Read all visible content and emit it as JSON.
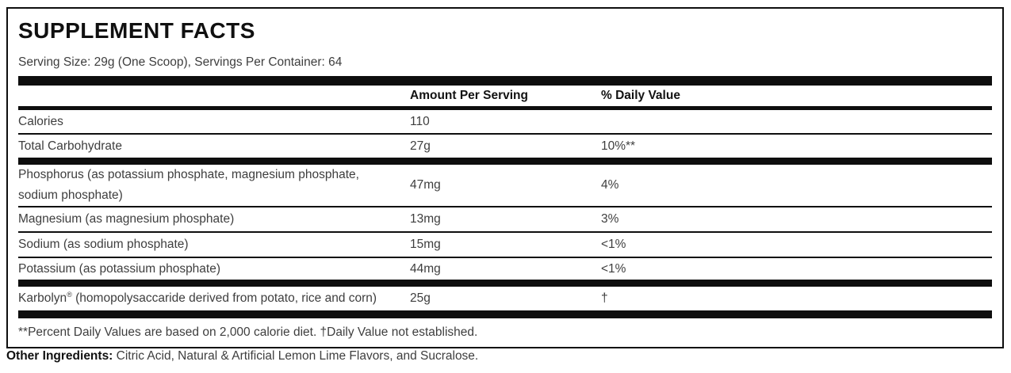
{
  "label": {
    "title": "SUPPLEMENT FACTS",
    "serving_info": "Serving Size: 29g (One Scoop), Servings Per Container: 64",
    "columns": {
      "amount": "Amount Per Serving",
      "daily_value": "% Daily Value"
    },
    "rows": [
      {
        "name": "Calories",
        "amount": "110",
        "dv": ""
      },
      {
        "name": "Total Carbohydrate",
        "amount": "27g",
        "dv": "10%**"
      },
      {
        "name": "Phosphorus (as potassium phosphate, magnesium phosphate, sodium phosphate)",
        "amount": "47mg",
        "dv": "4%"
      },
      {
        "name": "Magnesium (as magnesium phosphate)",
        "amount": "13mg",
        "dv": "3%"
      },
      {
        "name": "Sodium (as sodium phosphate)",
        "amount": "15mg",
        "dv": "<1%"
      },
      {
        "name": "Potassium (as potassium phosphate)",
        "amount": "44mg",
        "dv": "<1%"
      },
      {
        "name_main": "Karbolyn",
        "name_mark": "®",
        "name_rest": " (homopolysaccaride derived from potato, rice and corn)",
        "amount": "25g",
        "dv": "†"
      }
    ],
    "footnote": "**Percent Daily Values are based on 2,000 calorie diet. †Daily Value not established.",
    "other_ingredients": {
      "label_text": "Other Ingredients:",
      "text": " Citric Acid, Natural & Artificial Lemon Lime Flavors, and Sucralose."
    },
    "colors": {
      "border": "#0e0e0e",
      "body_text": "#3e3e3e",
      "heading_text": "#101010",
      "background": "#ffffff"
    }
  }
}
